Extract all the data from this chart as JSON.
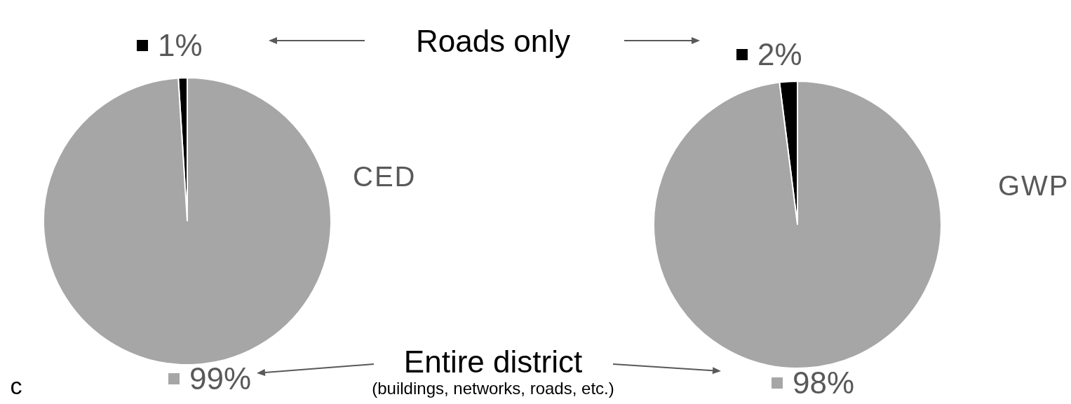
{
  "chart_data": [
    {
      "type": "pie",
      "title": "CED",
      "categories": [
        null,
        null
      ],
      "values": [
        1,
        99
      ],
      "colors": [
        "#000000",
        "#a6a6a6"
      ],
      "value_labels": [
        "1%",
        "99%"
      ],
      "annotations": [
        "Roads only",
        "Entire district",
        "(buildings, networks, roads, etc.)",
        "c"
      ]
    },
    {
      "type": "pie",
      "title": "GWP",
      "categories": [
        null,
        null
      ],
      "values": [
        2,
        98
      ],
      "colors": [
        "#000000",
        "#a6a6a6"
      ],
      "value_labels": [
        "2%",
        "98%"
      ]
    }
  ]
}
